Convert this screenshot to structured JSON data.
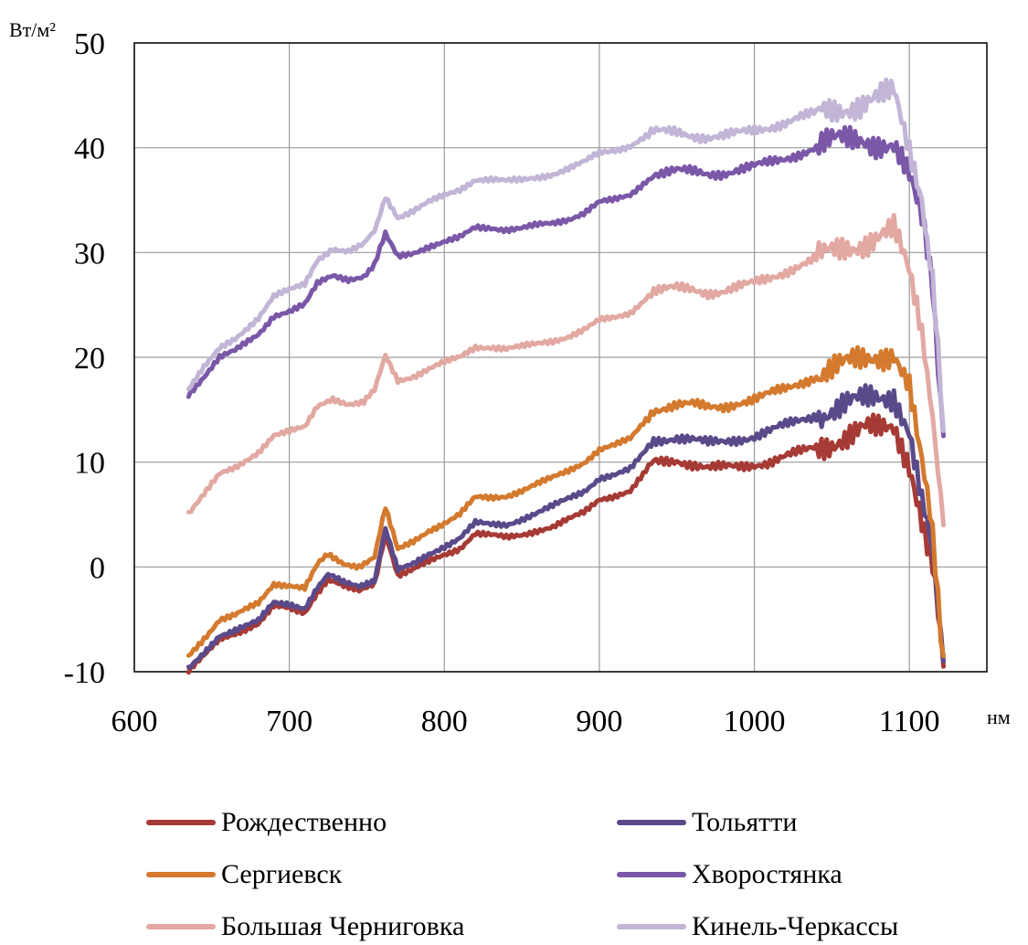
{
  "chart_data": {
    "type": "line",
    "ylabel": "Вт/м²",
    "xlabel": "нм",
    "xlim": [
      600,
      1150
    ],
    "ylim": [
      -10,
      50
    ],
    "x_ticks": [
      600,
      700,
      800,
      900,
      1000,
      1100
    ],
    "y_ticks": [
      -10,
      0,
      10,
      20,
      30,
      40,
      50
    ],
    "grid": true,
    "legend_position": "bottom",
    "series": [
      {
        "name": "Рождественно",
        "color": "#a63a35",
        "points": [
          [
            635,
            -10
          ],
          [
            645,
            -8.5
          ],
          [
            655,
            -6.8
          ],
          [
            665,
            -6.3
          ],
          [
            680,
            -5.5
          ],
          [
            690,
            -3.8
          ],
          [
            700,
            -3.9
          ],
          [
            710,
            -4.3
          ],
          [
            718,
            -2.4
          ],
          [
            725,
            -1.2
          ],
          [
            735,
            -1.9
          ],
          [
            745,
            -2.3
          ],
          [
            755,
            -1.5
          ],
          [
            762,
            3.2
          ],
          [
            770,
            -0.8
          ],
          [
            780,
            -0.3
          ],
          [
            790,
            0.5
          ],
          [
            800,
            1.2
          ],
          [
            810,
            1.8
          ],
          [
            820,
            3.2
          ],
          [
            830,
            3.0
          ],
          [
            840,
            2.8
          ],
          [
            850,
            3.1
          ],
          [
            860,
            3.5
          ],
          [
            870,
            3.8
          ],
          [
            880,
            4.5
          ],
          [
            890,
            5.2
          ],
          [
            900,
            6.5
          ],
          [
            910,
            6.8
          ],
          [
            920,
            7.2
          ],
          [
            935,
            10
          ],
          [
            950,
            10.2
          ],
          [
            960,
            9.8
          ],
          [
            970,
            9.4
          ],
          [
            980,
            9.5
          ],
          [
            990,
            9.6
          ],
          [
            1000,
            9.8
          ],
          [
            1010,
            10
          ],
          [
            1020,
            10.5
          ],
          [
            1030,
            11
          ],
          [
            1040,
            11.5
          ],
          [
            1050,
            12
          ],
          [
            1060,
            12.5
          ],
          [
            1070,
            13
          ],
          [
            1080,
            13
          ],
          [
            1090,
            13.5
          ],
          [
            1100,
            10
          ],
          [
            1108,
            5
          ],
          [
            1115,
            0
          ],
          [
            1122,
            -9.5
          ]
        ]
      },
      {
        "name": "Тольятти",
        "color": "#5b4a8a",
        "points": [
          [
            635,
            -9.8
          ],
          [
            645,
            -8.2
          ],
          [
            655,
            -6.5
          ],
          [
            665,
            -6.0
          ],
          [
            680,
            -5.2
          ],
          [
            690,
            -3.4
          ],
          [
            700,
            -3.5
          ],
          [
            710,
            -3.9
          ],
          [
            718,
            -1.9
          ],
          [
            725,
            -0.8
          ],
          [
            735,
            -1.5
          ],
          [
            745,
            -1.8
          ],
          [
            755,
            -1.2
          ],
          [
            762,
            3.6
          ],
          [
            770,
            -0.3
          ],
          [
            780,
            0.2
          ],
          [
            790,
            1.2
          ],
          [
            800,
            2.0
          ],
          [
            810,
            2.8
          ],
          [
            820,
            4.2
          ],
          [
            830,
            4.0
          ],
          [
            840,
            4.0
          ],
          [
            850,
            4.6
          ],
          [
            860,
            5.2
          ],
          [
            870,
            5.8
          ],
          [
            880,
            6.5
          ],
          [
            890,
            7.2
          ],
          [
            900,
            8.5
          ],
          [
            910,
            8.8
          ],
          [
            920,
            9.3
          ],
          [
            935,
            12.0
          ],
          [
            950,
            12.4
          ],
          [
            960,
            12.2
          ],
          [
            970,
            11.8
          ],
          [
            980,
            11.9
          ],
          [
            990,
            12.2
          ],
          [
            1000,
            12.5
          ],
          [
            1010,
            13
          ],
          [
            1020,
            13.5
          ],
          [
            1030,
            14
          ],
          [
            1040,
            14.5
          ],
          [
            1050,
            15
          ],
          [
            1060,
            15.5
          ],
          [
            1070,
            15.8
          ],
          [
            1080,
            16.2
          ],
          [
            1090,
            16.5
          ],
          [
            1100,
            13
          ],
          [
            1108,
            7
          ],
          [
            1115,
            1
          ],
          [
            1122,
            -9
          ]
        ]
      },
      {
        "name": "Сергиевск",
        "color": "#d47a2e",
        "points": [
          [
            635,
            -8.5
          ],
          [
            645,
            -6.8
          ],
          [
            655,
            -5.0
          ],
          [
            665,
            -4.6
          ],
          [
            680,
            -3.5
          ],
          [
            690,
            -1.6
          ],
          [
            700,
            -1.7
          ],
          [
            710,
            -2.0
          ],
          [
            718,
            0.3
          ],
          [
            725,
            1.1
          ],
          [
            735,
            0.3
          ],
          [
            745,
            0.1
          ],
          [
            755,
            1.0
          ],
          [
            762,
            5.6
          ],
          [
            770,
            1.6
          ],
          [
            780,
            2.4
          ],
          [
            790,
            3.5
          ],
          [
            800,
            4.2
          ],
          [
            810,
            5.0
          ],
          [
            820,
            6.6
          ],
          [
            830,
            6.6
          ],
          [
            840,
            6.8
          ],
          [
            850,
            7.3
          ],
          [
            860,
            7.9
          ],
          [
            870,
            8.5
          ],
          [
            880,
            9.2
          ],
          [
            890,
            10.0
          ],
          [
            900,
            11.2
          ],
          [
            910,
            11.6
          ],
          [
            920,
            12.2
          ],
          [
            935,
            15.0
          ],
          [
            950,
            15.5
          ],
          [
            960,
            15.5
          ],
          [
            970,
            15.2
          ],
          [
            980,
            15.3
          ],
          [
            990,
            15.7
          ],
          [
            1000,
            16
          ],
          [
            1010,
            16.5
          ],
          [
            1020,
            17
          ],
          [
            1030,
            17.6
          ],
          [
            1040,
            18.2
          ],
          [
            1050,
            18.8
          ],
          [
            1060,
            19.3
          ],
          [
            1070,
            19.8
          ],
          [
            1080,
            20.3
          ],
          [
            1090,
            20.5
          ],
          [
            1100,
            17
          ],
          [
            1108,
            10
          ],
          [
            1115,
            3
          ],
          [
            1122,
            -8.5
          ]
        ]
      },
      {
        "name": "Хворостянка",
        "color": "#7b57a8",
        "points": [
          [
            635,
            16.5
          ],
          [
            645,
            18.2
          ],
          [
            655,
            20.0
          ],
          [
            665,
            20.6
          ],
          [
            680,
            22.2
          ],
          [
            690,
            24.0
          ],
          [
            700,
            24.4
          ],
          [
            710,
            25.0
          ],
          [
            718,
            27.0
          ],
          [
            728,
            27.7
          ],
          [
            738,
            27.4
          ],
          [
            748,
            27.8
          ],
          [
            755,
            28.8
          ],
          [
            762,
            31.8
          ],
          [
            770,
            29.6
          ],
          [
            780,
            30.0
          ],
          [
            790,
            30.6
          ],
          [
            800,
            31.0
          ],
          [
            810,
            31.4
          ],
          [
            820,
            32.4
          ],
          [
            830,
            32.4
          ],
          [
            840,
            32.2
          ],
          [
            850,
            32.3
          ],
          [
            860,
            32.6
          ],
          [
            870,
            32.8
          ],
          [
            880,
            33.2
          ],
          [
            890,
            33.8
          ],
          [
            900,
            34.8
          ],
          [
            910,
            35.0
          ],
          [
            920,
            35.5
          ],
          [
            935,
            37.5
          ],
          [
            950,
            37.8
          ],
          [
            960,
            37.7
          ],
          [
            970,
            37.5
          ],
          [
            980,
            37.6
          ],
          [
            990,
            37.9
          ],
          [
            1000,
            38.2
          ],
          [
            1010,
            38.6
          ],
          [
            1020,
            39.0
          ],
          [
            1030,
            39.5
          ],
          [
            1040,
            40.0
          ],
          [
            1050,
            40.5
          ],
          [
            1060,
            40.8
          ],
          [
            1070,
            41.0
          ],
          [
            1080,
            40.5
          ],
          [
            1090,
            40.0
          ],
          [
            1100,
            37
          ],
          [
            1108,
            33
          ],
          [
            1115,
            27
          ],
          [
            1122,
            12.5
          ]
        ]
      },
      {
        "name": "Большая Черниговка",
        "color": "#e2a8a2",
        "points": [
          [
            635,
            5.2
          ],
          [
            645,
            7.0
          ],
          [
            655,
            8.8
          ],
          [
            665,
            9.4
          ],
          [
            680,
            11.0
          ],
          [
            690,
            12.6
          ],
          [
            700,
            12.9
          ],
          [
            710,
            13.3
          ],
          [
            718,
            15.2
          ],
          [
            728,
            16.0
          ],
          [
            738,
            15.6
          ],
          [
            748,
            15.8
          ],
          [
            755,
            16.8
          ],
          [
            762,
            20.3
          ],
          [
            770,
            17.8
          ],
          [
            780,
            18.2
          ],
          [
            790,
            18.9
          ],
          [
            800,
            19.5
          ],
          [
            810,
            20.0
          ],
          [
            820,
            21.0
          ],
          [
            830,
            21.0
          ],
          [
            840,
            20.8
          ],
          [
            850,
            21.0
          ],
          [
            860,
            21.3
          ],
          [
            870,
            21.6
          ],
          [
            880,
            22.0
          ],
          [
            890,
            22.6
          ],
          [
            900,
            23.5
          ],
          [
            910,
            23.8
          ],
          [
            920,
            24.3
          ],
          [
            935,
            26.3
          ],
          [
            950,
            26.6
          ],
          [
            960,
            26.5
          ],
          [
            970,
            26.2
          ],
          [
            980,
            26.3
          ],
          [
            990,
            26.7
          ],
          [
            1000,
            27.1
          ],
          [
            1010,
            27.6
          ],
          [
            1020,
            28.2
          ],
          [
            1030,
            28.8
          ],
          [
            1040,
            29.4
          ],
          [
            1050,
            30.0
          ],
          [
            1060,
            30.6
          ],
          [
            1070,
            31.0
          ],
          [
            1080,
            31.5
          ],
          [
            1090,
            32.0
          ],
          [
            1100,
            28
          ],
          [
            1108,
            22
          ],
          [
            1115,
            15
          ],
          [
            1122,
            4
          ]
        ]
      },
      {
        "name": "Кинель-Черкассы",
        "color": "#c2b5d6",
        "points": [
          [
            635,
            17.0
          ],
          [
            645,
            19.0
          ],
          [
            655,
            20.8
          ],
          [
            665,
            21.8
          ],
          [
            680,
            23.8
          ],
          [
            690,
            25.8
          ],
          [
            700,
            26.4
          ],
          [
            710,
            27.0
          ],
          [
            718,
            29.2
          ],
          [
            728,
            30.4
          ],
          [
            738,
            30.2
          ],
          [
            748,
            30.8
          ],
          [
            755,
            32.0
          ],
          [
            762,
            35.4
          ],
          [
            770,
            33.4
          ],
          [
            780,
            34.0
          ],
          [
            790,
            34.8
          ],
          [
            800,
            35.4
          ],
          [
            810,
            36.0
          ],
          [
            820,
            37.0
          ],
          [
            830,
            37.0
          ],
          [
            840,
            36.8
          ],
          [
            850,
            36.9
          ],
          [
            860,
            37.2
          ],
          [
            870,
            37.5
          ],
          [
            880,
            38.0
          ],
          [
            890,
            38.6
          ],
          [
            900,
            39.5
          ],
          [
            910,
            39.8
          ],
          [
            920,
            40.2
          ],
          [
            935,
            41.5
          ],
          [
            950,
            41.5
          ],
          [
            960,
            41.2
          ],
          [
            970,
            41.0
          ],
          [
            980,
            41.1
          ],
          [
            990,
            41.4
          ],
          [
            1000,
            41.7
          ],
          [
            1010,
            42.0
          ],
          [
            1020,
            42.4
          ],
          [
            1030,
            42.9
          ],
          [
            1040,
            43.3
          ],
          [
            1050,
            43.7
          ],
          [
            1060,
            44.0
          ],
          [
            1070,
            44.2
          ],
          [
            1080,
            44.6
          ],
          [
            1090,
            45.2
          ],
          [
            1100,
            40
          ],
          [
            1108,
            35
          ],
          [
            1115,
            28
          ],
          [
            1122,
            13
          ]
        ]
      }
    ]
  }
}
